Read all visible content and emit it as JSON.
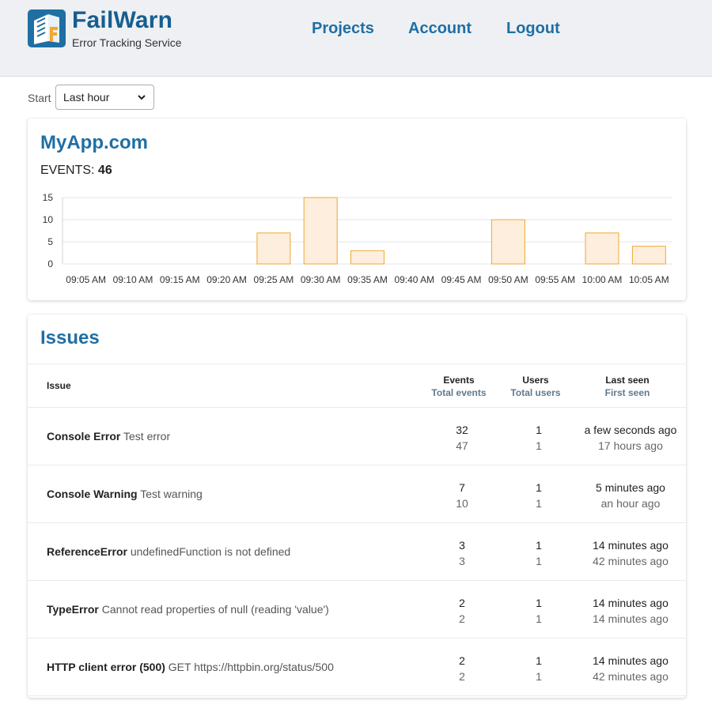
{
  "brand": {
    "name": "FailWarn",
    "tagline": "Error Tracking Service"
  },
  "nav": {
    "projects": "Projects",
    "account": "Account",
    "logout": "Logout"
  },
  "filter": {
    "label": "Start",
    "selected": "Last hour"
  },
  "project": {
    "name": "MyApp.com",
    "events_label": "EVENTS:",
    "events_count": "46"
  },
  "chart_data": {
    "type": "bar",
    "categories": [
      "09:05 AM",
      "09:10 AM",
      "09:15 AM",
      "09:20 AM",
      "09:25 AM",
      "09:30 AM",
      "09:35 AM",
      "09:40 AM",
      "09:45 AM",
      "09:50 AM",
      "09:55 AM",
      "10:00 AM",
      "10:05 AM"
    ],
    "values": [
      0,
      0,
      0,
      0,
      7,
      15,
      3,
      0,
      0,
      10,
      0,
      7,
      4
    ],
    "yticks": [
      0,
      5,
      10,
      15
    ],
    "ylim": [
      0,
      15
    ],
    "grid": true,
    "bar_color": "#f0a830",
    "bar_fill": "#fdeedd"
  },
  "issues": {
    "title": "Issues",
    "headers": {
      "issue": "Issue",
      "events": "Events",
      "events_sub": "Total events",
      "users": "Users",
      "users_sub": "Total users",
      "last_seen": "Last seen",
      "first_seen": "First seen"
    },
    "rows": [
      {
        "type": "Console Error",
        "message": "Test error",
        "events": "32",
        "total_events": "47",
        "users": "1",
        "total_users": "1",
        "last_seen": "a few seconds ago",
        "first_seen": "17 hours ago"
      },
      {
        "type": "Console Warning",
        "message": "Test warning",
        "events": "7",
        "total_events": "10",
        "users": "1",
        "total_users": "1",
        "last_seen": "5 minutes ago",
        "first_seen": "an hour ago"
      },
      {
        "type": "ReferenceError",
        "message": "undefinedFunction is not defined",
        "events": "3",
        "total_events": "3",
        "users": "1",
        "total_users": "1",
        "last_seen": "14 minutes ago",
        "first_seen": "42 minutes ago"
      },
      {
        "type": "TypeError",
        "message": "Cannot read properties of null (reading 'value')",
        "events": "2",
        "total_events": "2",
        "users": "1",
        "total_users": "1",
        "last_seen": "14 minutes ago",
        "first_seen": "14 minutes ago"
      },
      {
        "type": "HTTP client error (500)",
        "message": "GET https://httpbin.org/status/500",
        "events": "2",
        "total_events": "2",
        "users": "1",
        "total_users": "1",
        "last_seen": "14 minutes ago",
        "first_seen": "42 minutes ago"
      }
    ]
  }
}
